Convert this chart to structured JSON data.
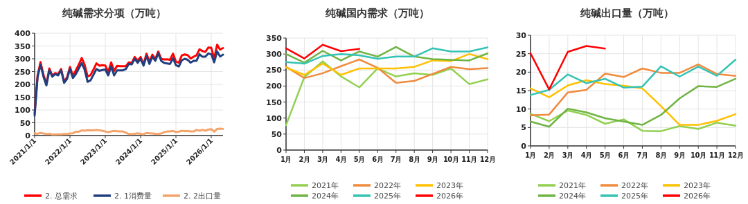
{
  "chart_data": [
    {
      "type": "line",
      "title": "纯碱需求分项（万吨）",
      "x": [
        "2021-01",
        "2021-02",
        "2021-03",
        "2021-04",
        "2021-05",
        "2021-06",
        "2021-07",
        "2021-08",
        "2021-09",
        "2021-10",
        "2021-11",
        "2021-12",
        "2022-01",
        "2022-02",
        "2022-03",
        "2022-04",
        "2022-05",
        "2022-06",
        "2022-07",
        "2022-08",
        "2022-09",
        "2022-10",
        "2022-11",
        "2022-12",
        "2023-01",
        "2023-02",
        "2023-03",
        "2023-04",
        "2023-05",
        "2023-06",
        "2023-07",
        "2023-08",
        "2023-09",
        "2023-10",
        "2023-11",
        "2023-12",
        "2024-01",
        "2024-02",
        "2024-03",
        "2024-04",
        "2024-05",
        "2024-06",
        "2024-07",
        "2024-08",
        "2024-09",
        "2024-10",
        "2024-11",
        "2024-12",
        "2025-01",
        "2025-02",
        "2025-03",
        "2025-04",
        "2025-05",
        "2025-06",
        "2025-07",
        "2025-08",
        "2025-09",
        "2025-10",
        "2025-11",
        "2025-12",
        "2026-01",
        "2026-02",
        "2026-03",
        "2026-04",
        "2026-05"
      ],
      "xlim": [
        "2021-01",
        "2026-05"
      ],
      "xticks": [
        {
          "value": "2021-01",
          "label": "2021/1/1"
        },
        {
          "value": "2022-01",
          "label": "2022/1/1"
        },
        {
          "value": "2023-01",
          "label": "2023/1/1"
        },
        {
          "value": "2024-01",
          "label": "2024/1/1"
        },
        {
          "value": "2025-01",
          "label": "2025/1/1"
        },
        {
          "value": "2026-01",
          "label": "2026/1/1"
        }
      ],
      "ylim": [
        0,
        400
      ],
      "yticks": [
        0,
        50,
        100,
        150,
        200,
        250,
        300,
        350,
        400
      ],
      "grid": true,
      "legend": "bottom",
      "series": [
        {
          "name": "2. 总需求",
          "color": "#ff0000",
          "values": [
            87,
            235,
            287,
            238,
            202,
            262,
            234,
            244,
            240,
            260,
            212,
            227,
            268,
            234,
            255,
            277,
            303,
            276,
            231,
            236,
            258,
            282,
            273,
            275,
            274,
            248,
            286,
            253,
            272,
            271,
            271,
            271,
            286,
            284,
            307,
            293,
            307,
            278,
            320,
            289,
            316,
            299,
            328,
            300,
            297,
            298,
            296,
            320,
            289,
            285,
            313,
            317,
            314,
            301,
            308,
            314,
            337,
            330,
            327,
            344,
            343,
            301,
            355,
            336,
            342
          ]
        },
        {
          "name": "2. 1消费量",
          "color": "#203f7f",
          "values": [
            78,
            228,
            277,
            230,
            196,
            255,
            230,
            240,
            235,
            255,
            206,
            221,
            260,
            225,
            240,
            262,
            283,
            257,
            210,
            216,
            238,
            260,
            253,
            256,
            258,
            235,
            270,
            235,
            255,
            255,
            255,
            260,
            280,
            278,
            300,
            284,
            300,
            273,
            310,
            280,
            308,
            292,
            322,
            292,
            284,
            282,
            280,
            302,
            275,
            270,
            294,
            300,
            296,
            285,
            292,
            292,
            318,
            308,
            308,
            321,
            318,
            286,
            329,
            309,
            316
          ]
        },
        {
          "name": "2. 2出口量",
          "color": "#f4a46a",
          "values": [
            9,
            7,
            10,
            8,
            6,
            7,
            4,
            4,
            5,
            5,
            6,
            6,
            8,
            9,
            15,
            15,
            20,
            19,
            21,
            20,
            20,
            22,
            20,
            19,
            16,
            13,
            16,
            18,
            17,
            16,
            16,
            11,
            6,
            6,
            7,
            9,
            7,
            5,
            10,
            9,
            8,
            7,
            6,
            8,
            13,
            16,
            16,
            18,
            14,
            15,
            19,
            17,
            18,
            16,
            16,
            22,
            19,
            22,
            19,
            23,
            25,
            15,
            26,
            27,
            26
          ]
        }
      ]
    },
    {
      "type": "line",
      "title": "纯碱国内需求（万吨）",
      "categories": [
        "1月",
        "2月",
        "3月",
        "4月",
        "5月",
        "6月",
        "7月",
        "8月",
        "9月",
        "10月",
        "11月",
        "12月"
      ],
      "ylim": [
        0,
        350
      ],
      "yticks": [
        0,
        50,
        100,
        150,
        200,
        250,
        300,
        350
      ],
      "grid": true,
      "legend": "bottom",
      "series": [
        {
          "name": "2021年",
          "color": "#92d050",
          "values": [
            78,
            228,
            277,
            230,
            196,
            255,
            230,
            240,
            235,
            255,
            206,
            221
          ]
        },
        {
          "name": "2022年",
          "color": "#f08a3c",
          "values": [
            260,
            225,
            240,
            262,
            283,
            257,
            210,
            216,
            238,
            260,
            253,
            256
          ]
        },
        {
          "name": "2023年",
          "color": "#ffc000",
          "values": [
            258,
            235,
            270,
            235,
            255,
            255,
            255,
            260,
            280,
            278,
            300,
            284
          ]
        },
        {
          "name": "2024年",
          "color": "#6fb443",
          "values": [
            300,
            273,
            310,
            280,
            308,
            292,
            322,
            292,
            284,
            282,
            280,
            302
          ]
        },
        {
          "name": "2025年",
          "color": "#33c3b5",
          "values": [
            275,
            270,
            294,
            300,
            296,
            285,
            292,
            292,
            318,
            308,
            308,
            321
          ]
        },
        {
          "name": "2026年",
          "color": "#ff0000",
          "values": [
            318,
            286,
            329,
            309,
            316,
            null,
            null,
            null,
            null,
            null,
            null,
            null
          ]
        }
      ]
    },
    {
      "type": "line",
      "title": "纯碱出口量（万吨）",
      "categories": [
        "1月",
        "2月",
        "3月",
        "4月",
        "5月",
        "6月",
        "7月",
        "8月",
        "9月",
        "10月",
        "11月",
        "12月"
      ],
      "ylim": [
        0,
        30
      ],
      "yticks": [
        0,
        5,
        10,
        15,
        20,
        25,
        30
      ],
      "grid": true,
      "legend": "bottom",
      "series": [
        {
          "name": "2021年",
          "color": "#92d050",
          "values": [
            8.7,
            6.7,
            9.6,
            8.4,
            6.0,
            7.2,
            4.1,
            4.0,
            5.4,
            4.6,
            6.3,
            5.5
          ]
        },
        {
          "name": "2022年",
          "color": "#f08a3c",
          "values": [
            8.3,
            8.5,
            14.5,
            15.2,
            19.6,
            18.7,
            21.0,
            19.8,
            19.8,
            22.1,
            19.5,
            19.0
          ]
        },
        {
          "name": "2023年",
          "color": "#ffc000",
          "values": [
            15.6,
            13.2,
            16.4,
            17.8,
            16.8,
            16.3,
            15.6,
            10.8,
            5.7,
            5.7,
            6.8,
            8.6
          ]
        },
        {
          "name": "2024年",
          "color": "#6fb443",
          "values": [
            6.6,
            5.2,
            10.1,
            9.1,
            7.5,
            6.6,
            5.7,
            8.4,
            12.9,
            16.2,
            16.0,
            18.2
          ]
        },
        {
          "name": "2025年",
          "color": "#33c3b5",
          "values": [
            13.8,
            15.2,
            19.4,
            17.0,
            18.2,
            15.8,
            16.1,
            21.6,
            18.8,
            21.5,
            19.0,
            23.4
          ]
        },
        {
          "name": "2026年",
          "color": "#ff0000",
          "values": [
            25.1,
            15.3,
            25.5,
            27.1,
            26.4,
            null,
            null,
            null,
            null,
            null,
            null,
            null
          ]
        }
      ]
    }
  ]
}
